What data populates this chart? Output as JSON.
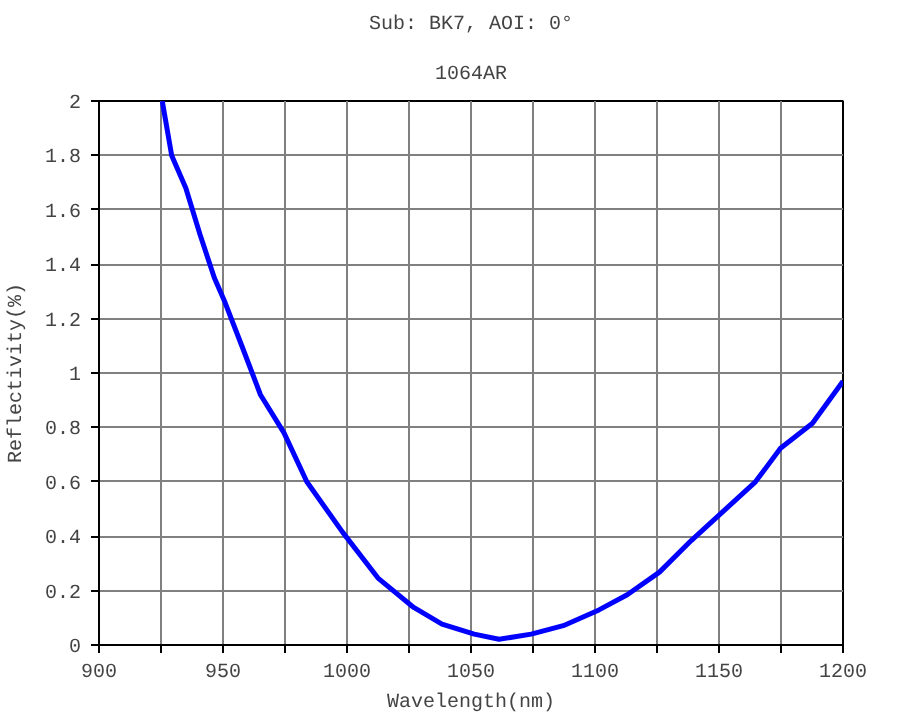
{
  "chart_data": {
    "type": "line",
    "title": "Sub: BK7, AOI: 0°",
    "subtitle": "1064AR",
    "xlabel": "Wavelength(nm)",
    "ylabel": "Reflectivity(%)",
    "x": [
      925.5,
      929.3,
      935,
      940.7,
      946.5,
      950.8,
      958,
      965.1,
      974.6,
      983.8,
      998.2,
      1012.5,
      1026.9,
      1038.3,
      1051.3,
      1061.3,
      1074.3,
      1087.2,
      1101.6,
      1113,
      1126,
      1138.9,
      1151.8,
      1164.7,
      1174.8,
      1187.7,
      1200
    ],
    "series": [
      {
        "color": "#0000ff",
        "values": [
          2.0,
          1.8,
          1.68,
          1.51,
          1.35,
          1.26,
          1.09,
          0.92,
          0.78,
          0.6,
          0.415,
          0.246,
          0.138,
          0.077,
          0.04,
          0.021,
          0.04,
          0.071,
          0.129,
          0.185,
          0.268,
          0.385,
          0.492,
          0.6,
          0.723,
          0.815,
          0.97
        ]
      }
    ],
    "xlim": [
      900,
      1200
    ],
    "ylim": [
      0,
      2
    ],
    "xticks": [
      900,
      {
        "value": 925,
        "label": null
      },
      950,
      {
        "value": 975,
        "label": null
      },
      1000,
      {
        "value": 1025,
        "label": null
      },
      1050,
      {
        "value": 1075,
        "label": null
      },
      1100,
      {
        "value": 1125,
        "label": null
      },
      1150,
      {
        "value": 1175,
        "label": null
      },
      1200
    ],
    "yticks": [
      0,
      0.2,
      0.4,
      0.6,
      0.8,
      1,
      1.2,
      1.4,
      1.6,
      1.8,
      2
    ],
    "grid": true,
    "marker": "none",
    "line_style": "solid"
  }
}
